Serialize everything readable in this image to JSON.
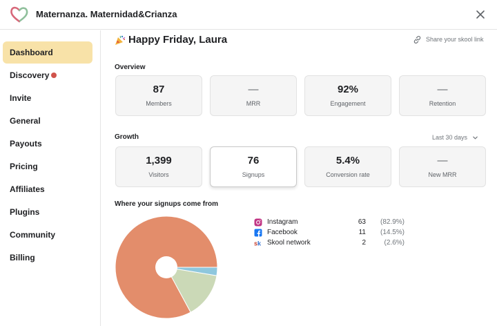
{
  "header": {
    "title": "Maternanza. Maternidad&Crianza",
    "logo_icon": "heart-logo-icon",
    "close_icon": "close-icon"
  },
  "sidebar": {
    "items": [
      {
        "label": "Dashboard",
        "active": true
      },
      {
        "label": "Discovery",
        "badge_dot": true
      },
      {
        "label": "Invite"
      },
      {
        "label": "General"
      },
      {
        "label": "Payouts"
      },
      {
        "label": "Pricing"
      },
      {
        "label": "Affiliates"
      },
      {
        "label": "Plugins"
      },
      {
        "label": "Community"
      },
      {
        "label": "Billing"
      }
    ]
  },
  "main": {
    "greeting": "Happy Friday, Laura",
    "share_label": "Share your skool link",
    "overview": {
      "title": "Overview",
      "cards": [
        {
          "value": "87",
          "label": "Members"
        },
        {
          "value": "—",
          "label": "MRR"
        },
        {
          "value": "92%",
          "label": "Engagement"
        },
        {
          "value": "—",
          "label": "Retention"
        }
      ]
    },
    "growth": {
      "title": "Growth",
      "range": "Last 30 days",
      "cards": [
        {
          "value": "1,399",
          "label": "Visitors"
        },
        {
          "value": "76",
          "label": "Signups"
        },
        {
          "value": "5.4%",
          "label": "Conversion rate"
        },
        {
          "value": "—",
          "label": "New MRR"
        }
      ]
    },
    "signups": {
      "title": "Where your signups come from",
      "sources": [
        {
          "name": "Instagram",
          "count": "63",
          "pct": "(82.9%)",
          "icon": "instagram-icon"
        },
        {
          "name": "Facebook",
          "count": "11",
          "pct": "(14.5%)",
          "icon": "facebook-icon"
        },
        {
          "name": "Skool network",
          "count": "2",
          "pct": "(2.6%)",
          "icon": "skool-icon"
        }
      ]
    }
  },
  "colors": {
    "active_nav": "#f8e2a8",
    "badge_dot": "#d0534b",
    "pie_instagram": "#e38d6b",
    "pie_facebook": "#cbd9b7",
    "pie_skool": "#8ec7dd"
  },
  "chart_data": {
    "type": "pie",
    "categories": [
      "Instagram",
      "Facebook",
      "Skool network"
    ],
    "values": [
      63,
      11,
      2
    ],
    "title": "Where your signups come from",
    "donut_hole": true
  }
}
